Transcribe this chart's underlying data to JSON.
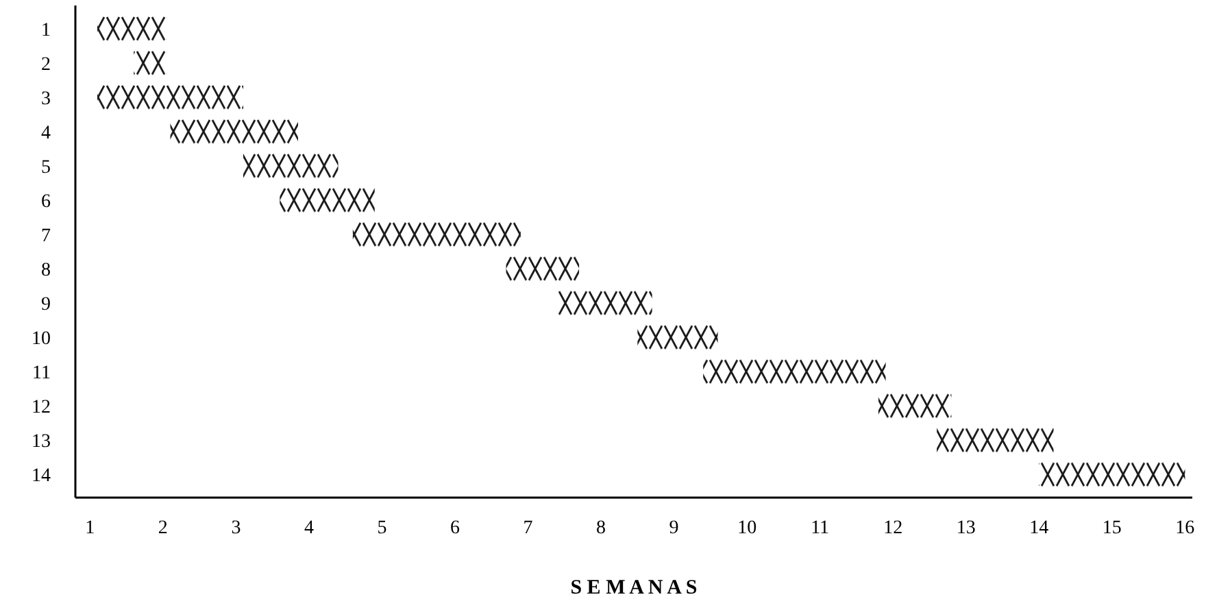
{
  "chart_data": {
    "type": "bar",
    "orientation": "horizontal",
    "xlabel": "S E M A N A S",
    "color": "#1a1a1a",
    "categories": [
      "1",
      "2",
      "3",
      "4",
      "5",
      "6",
      "7",
      "8",
      "9",
      "10",
      "11",
      "12",
      "13",
      "14"
    ],
    "base": [
      1.1,
      1.6,
      1.1,
      2.1,
      3.1,
      3.6,
      4.6,
      6.7,
      7.4,
      8.5,
      9.4,
      11.8,
      12.6,
      14.0
    ],
    "values": [
      0.95,
      0.45,
      2.0,
      1.75,
      1.3,
      1.3,
      2.3,
      1.0,
      1.3,
      1.1,
      2.5,
      1.0,
      1.6,
      2.0
    ],
    "xlim": [
      0.8,
      16.1
    ],
    "xticks": [
      1,
      2,
      3,
      4,
      5,
      6,
      7,
      8,
      9,
      10,
      11,
      12,
      13,
      14,
      15,
      16
    ],
    "grid": false
  }
}
